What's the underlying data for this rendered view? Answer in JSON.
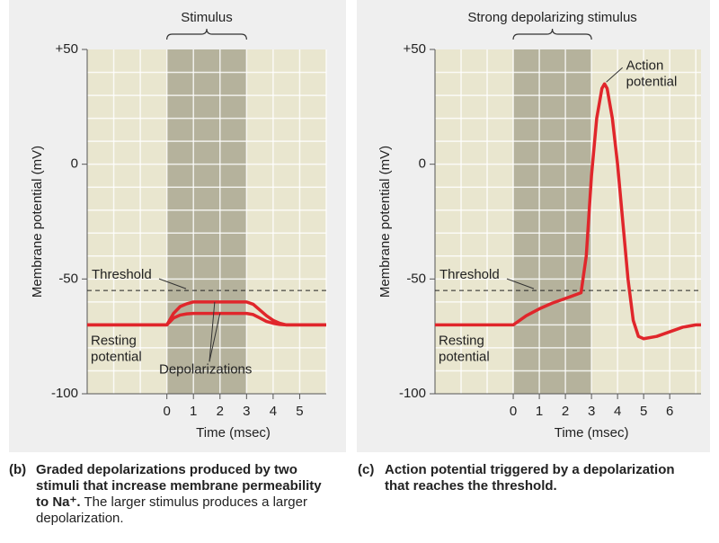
{
  "chart_data": [
    {
      "type": "line",
      "xlabel": "Time (msec)",
      "ylabel": "Membrane potential (mV)",
      "xlim": [
        -3,
        6
      ],
      "ylim": [
        -100,
        50
      ],
      "xticks": [
        0,
        1,
        2,
        3,
        4,
        5
      ],
      "yticks": [
        -100,
        -50,
        0,
        {
          "value": 50,
          "label": "+50"
        }
      ],
      "stimulus": {
        "label": "Stimulus",
        "range": [
          0,
          3
        ]
      },
      "threshold": {
        "value": -55,
        "label": "Threshold"
      },
      "resting_label": [
        "Resting",
        "potential"
      ],
      "curve_label": [
        "Depolarizations"
      ],
      "series": [
        {
          "color": "#e0262b",
          "x": [
            -3,
            0,
            0.25,
            0.5,
            0.75,
            1,
            3,
            3.25,
            3.5,
            3.75,
            4,
            4.25,
            4.5,
            6
          ],
          "values": [
            -70,
            -70,
            -65,
            -62,
            -60.8,
            -60,
            -60,
            -61,
            -63.5,
            -66,
            -68,
            -69.3,
            -70,
            -70
          ]
        },
        {
          "color": "#e0262b",
          "x": [
            -3,
            0,
            0.25,
            0.5,
            0.75,
            1,
            3,
            3.25,
            3.5,
            3.75,
            4,
            4.25,
            4.5,
            6
          ],
          "values": [
            -70,
            -70,
            -67,
            -65.7,
            -65.2,
            -65,
            -65,
            -65.5,
            -67,
            -68.5,
            -69.3,
            -69.8,
            -70,
            -70
          ]
        }
      ]
    },
    {
      "type": "line",
      "xlabel": "Time (msec)",
      "ylabel": "Membrane potential (mV)",
      "xlim": [
        -3,
        7.2
      ],
      "ylim": [
        -100,
        50
      ],
      "xticks": [
        0,
        1,
        2,
        3,
        4,
        5,
        6
      ],
      "yticks": [
        -100,
        -50,
        0,
        {
          "value": 50,
          "label": "+50"
        }
      ],
      "stimulus": {
        "label": "Strong depolarizing stimulus",
        "range": [
          0,
          3
        ]
      },
      "threshold": {
        "value": -55,
        "label": "Threshold"
      },
      "resting_label": [
        "Resting",
        "potential"
      ],
      "curve_label": [
        "Action",
        "potential"
      ],
      "series": [
        {
          "color": "#e0262b",
          "x": [
            -3,
            0,
            0.5,
            1,
            1.5,
            2,
            2.6,
            2.8,
            3,
            3.2,
            3.4,
            3.5,
            3.6,
            3.8,
            4,
            4.2,
            4.4,
            4.6,
            4.8,
            5,
            5.5,
            6,
            6.5,
            7,
            7.2
          ],
          "values": [
            -70,
            -70,
            -66,
            -63,
            -60.5,
            -58.5,
            -56,
            -40,
            -5,
            20,
            33,
            35,
            33,
            20,
            0,
            -25,
            -50,
            -68,
            -75,
            -76,
            -75,
            -73,
            -71,
            -70,
            -70
          ]
        }
      ]
    }
  ],
  "captions": [
    {
      "tag": "(b)",
      "bold": "Graded depolarizations produced by two stimuli that increase membrane permeability to Na⁺.",
      "normal": "The larger stimulus produces a larger depolarization."
    },
    {
      "tag": "(c)",
      "bold": "Action potential triggered by a depolarization that reaches the threshold.",
      "normal": ""
    }
  ]
}
